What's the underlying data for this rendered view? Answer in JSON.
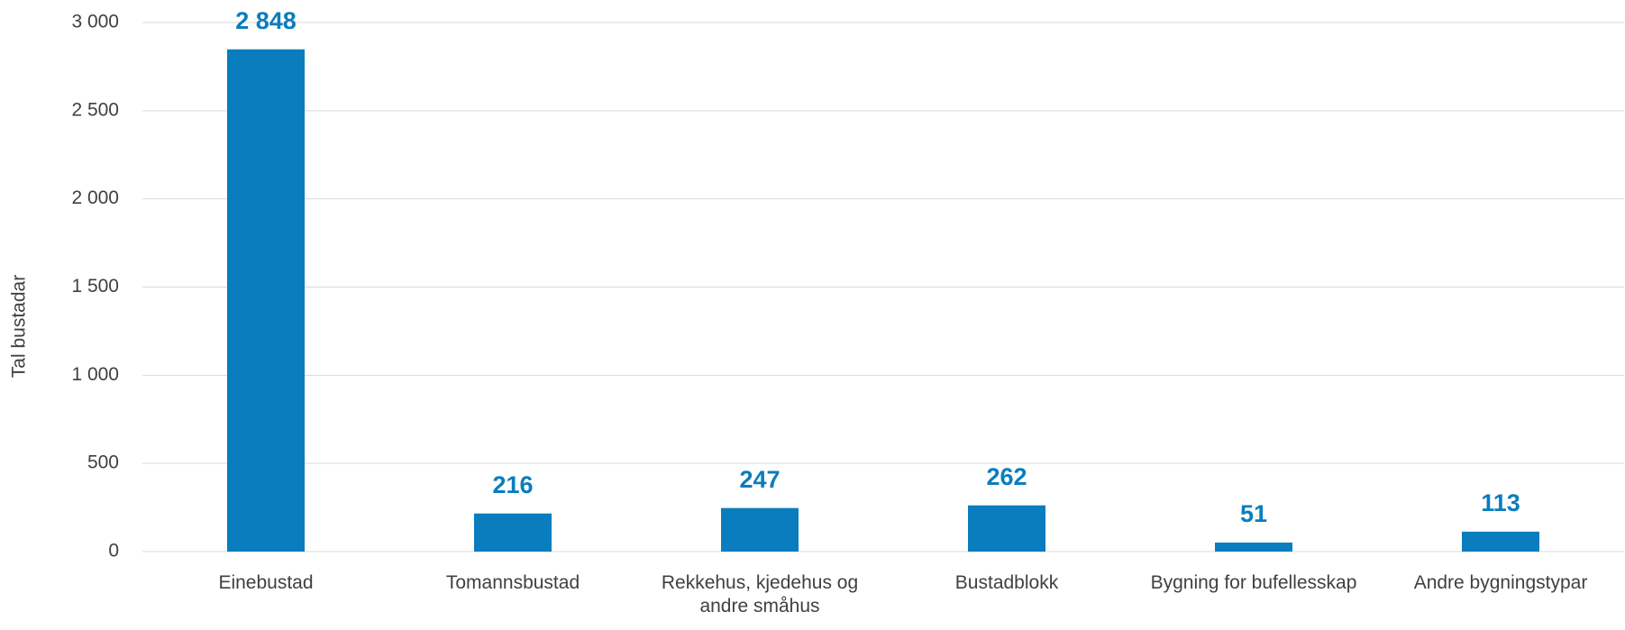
{
  "chart_data": {
    "type": "bar",
    "y_label": "Tal bustadar",
    "categories": [
      "Einebustad",
      "Tomannsbustad",
      "Rekkehus, kjedehus og andre småhus",
      "Bustadblokk",
      "Bygning for bufellesskap",
      "Andre bygningstypar"
    ],
    "values": [
      2848,
      216,
      247,
      262,
      51,
      113
    ],
    "value_labels": [
      "2 848",
      "216",
      "247",
      "262",
      "51",
      "113"
    ],
    "color": "#0a7dbe",
    "ylim": [
      0,
      3000
    ],
    "yticks": [
      0,
      500,
      {
        "value": 1000,
        "label": "1 000"
      },
      {
        "value": 1500,
        "label": "1 500"
      },
      {
        "value": 2000,
        "label": "2 000"
      },
      {
        "value": 2500,
        "label": "2 500"
      },
      {
        "value": 3000,
        "label": "3 000"
      }
    ],
    "grid": true
  }
}
